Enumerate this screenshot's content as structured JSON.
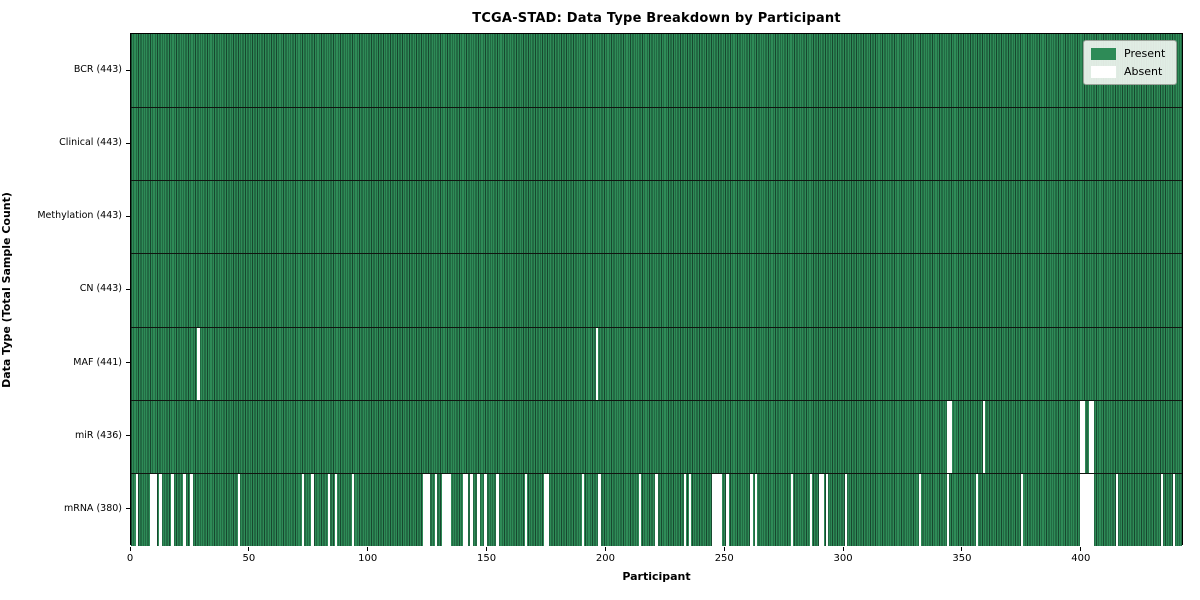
{
  "chart_data": {
    "type": "heatmap",
    "title": "TCGA-STAD: Data Type Breakdown by Participant",
    "xlabel": "Participant",
    "ylabel": "Data Type (Total Sample Count)",
    "x_ticks": [
      0,
      50,
      100,
      150,
      200,
      250,
      300,
      350,
      400
    ],
    "x_range": [
      0,
      443
    ],
    "n_participants": 443,
    "grid": false,
    "legend_position": "upper right",
    "colors": {
      "present": "#2E8B57",
      "present_edge": "#17482f",
      "absent": "#FFFFFF"
    },
    "legend": [
      {
        "key": "present",
        "label": "Present",
        "color": "#2E8B57"
      },
      {
        "key": "absent",
        "label": "Absent",
        "color": "#FFFFFF"
      }
    ],
    "rows": [
      {
        "key": "bcr",
        "label": "BCR (443)",
        "present_count": 443,
        "absent_participants": []
      },
      {
        "key": "clinical",
        "label": "Clinical (443)",
        "present_count": 443,
        "absent_participants": []
      },
      {
        "key": "methylation",
        "label": "Methylation (443)",
        "present_count": 443,
        "absent_participants": []
      },
      {
        "key": "cn",
        "label": "CN (443)",
        "present_count": 443,
        "absent_participants": []
      },
      {
        "key": "maf",
        "label": "MAF (441)",
        "present_count": 441,
        "absent_participants": [
          28,
          196
        ]
      },
      {
        "key": "mir",
        "label": "miR (436)",
        "present_count": 436,
        "absent_participants": [
          344,
          345,
          359,
          400,
          401,
          404,
          405
        ]
      },
      {
        "key": "mrna",
        "label": "mRNA (380)",
        "present_count": 380,
        "absent_participants": [
          2,
          8,
          9,
          10,
          12,
          17,
          22,
          25,
          45,
          72,
          76,
          83,
          86,
          93,
          123,
          124,
          125,
          128,
          131,
          132,
          133,
          134,
          140,
          141,
          143,
          146,
          149,
          154,
          166,
          174,
          175,
          190,
          197,
          214,
          221,
          233,
          235,
          245,
          246,
          247,
          248,
          251,
          261,
          263,
          278,
          286,
          290,
          291,
          293,
          301,
          332,
          344,
          356,
          375,
          400,
          401,
          402,
          403,
          404,
          405,
          415,
          434,
          439
        ]
      }
    ]
  }
}
